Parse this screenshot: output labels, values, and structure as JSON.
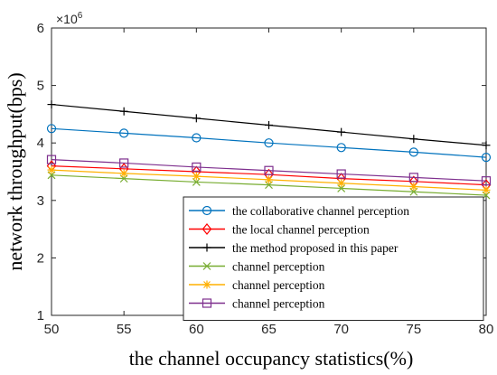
{
  "chart_data": {
    "type": "line",
    "title": "",
    "xlabel": "the channel occupancy statistics(%)",
    "ylabel": "network throughput(bps)",
    "y_exponent_label": "×10",
    "y_exponent_power": "6",
    "xlim": [
      50,
      80
    ],
    "ylim": [
      1,
      6
    ],
    "x": [
      50,
      55,
      60,
      65,
      70,
      75,
      80
    ],
    "x_tick_labels": [
      "50",
      "55",
      "60",
      "65",
      "70",
      "75",
      "80"
    ],
    "y_tick_values": [
      1,
      2,
      3,
      4,
      5,
      6
    ],
    "y_tick_labels": [
      "1",
      "2",
      "3",
      "4",
      "5",
      "6"
    ],
    "grid": false,
    "legend_position": "bottom-right",
    "series": [
      {
        "name": "the collaborative channel perception",
        "color": "#0072BD",
        "marker": "circle",
        "values": [
          4.25,
          4.17,
          4.09,
          4.0,
          3.92,
          3.84,
          3.75
        ]
      },
      {
        "name": "the local channel perception",
        "color": "#FF0000",
        "marker": "diamond",
        "values": [
          3.6,
          3.55,
          3.5,
          3.45,
          3.38,
          3.33,
          3.27
        ]
      },
      {
        "name": "the method proposed in this paper",
        "color": "#000000",
        "marker": "plus",
        "values": [
          4.67,
          4.55,
          4.43,
          4.31,
          4.19,
          4.07,
          3.96
        ]
      },
      {
        "name": "channel perception",
        "color": "#77AC30",
        "marker": "x",
        "values": [
          3.44,
          3.38,
          3.32,
          3.27,
          3.21,
          3.15,
          3.09
        ]
      },
      {
        "name": "channel perception",
        "color": "#FFB000",
        "marker": "asterisk",
        "values": [
          3.53,
          3.47,
          3.42,
          3.36,
          3.3,
          3.24,
          3.18
        ]
      },
      {
        "name": "channel perception",
        "color": "#7E2F8E",
        "marker": "square",
        "values": [
          3.71,
          3.65,
          3.58,
          3.52,
          3.46,
          3.4,
          3.34
        ]
      }
    ]
  }
}
